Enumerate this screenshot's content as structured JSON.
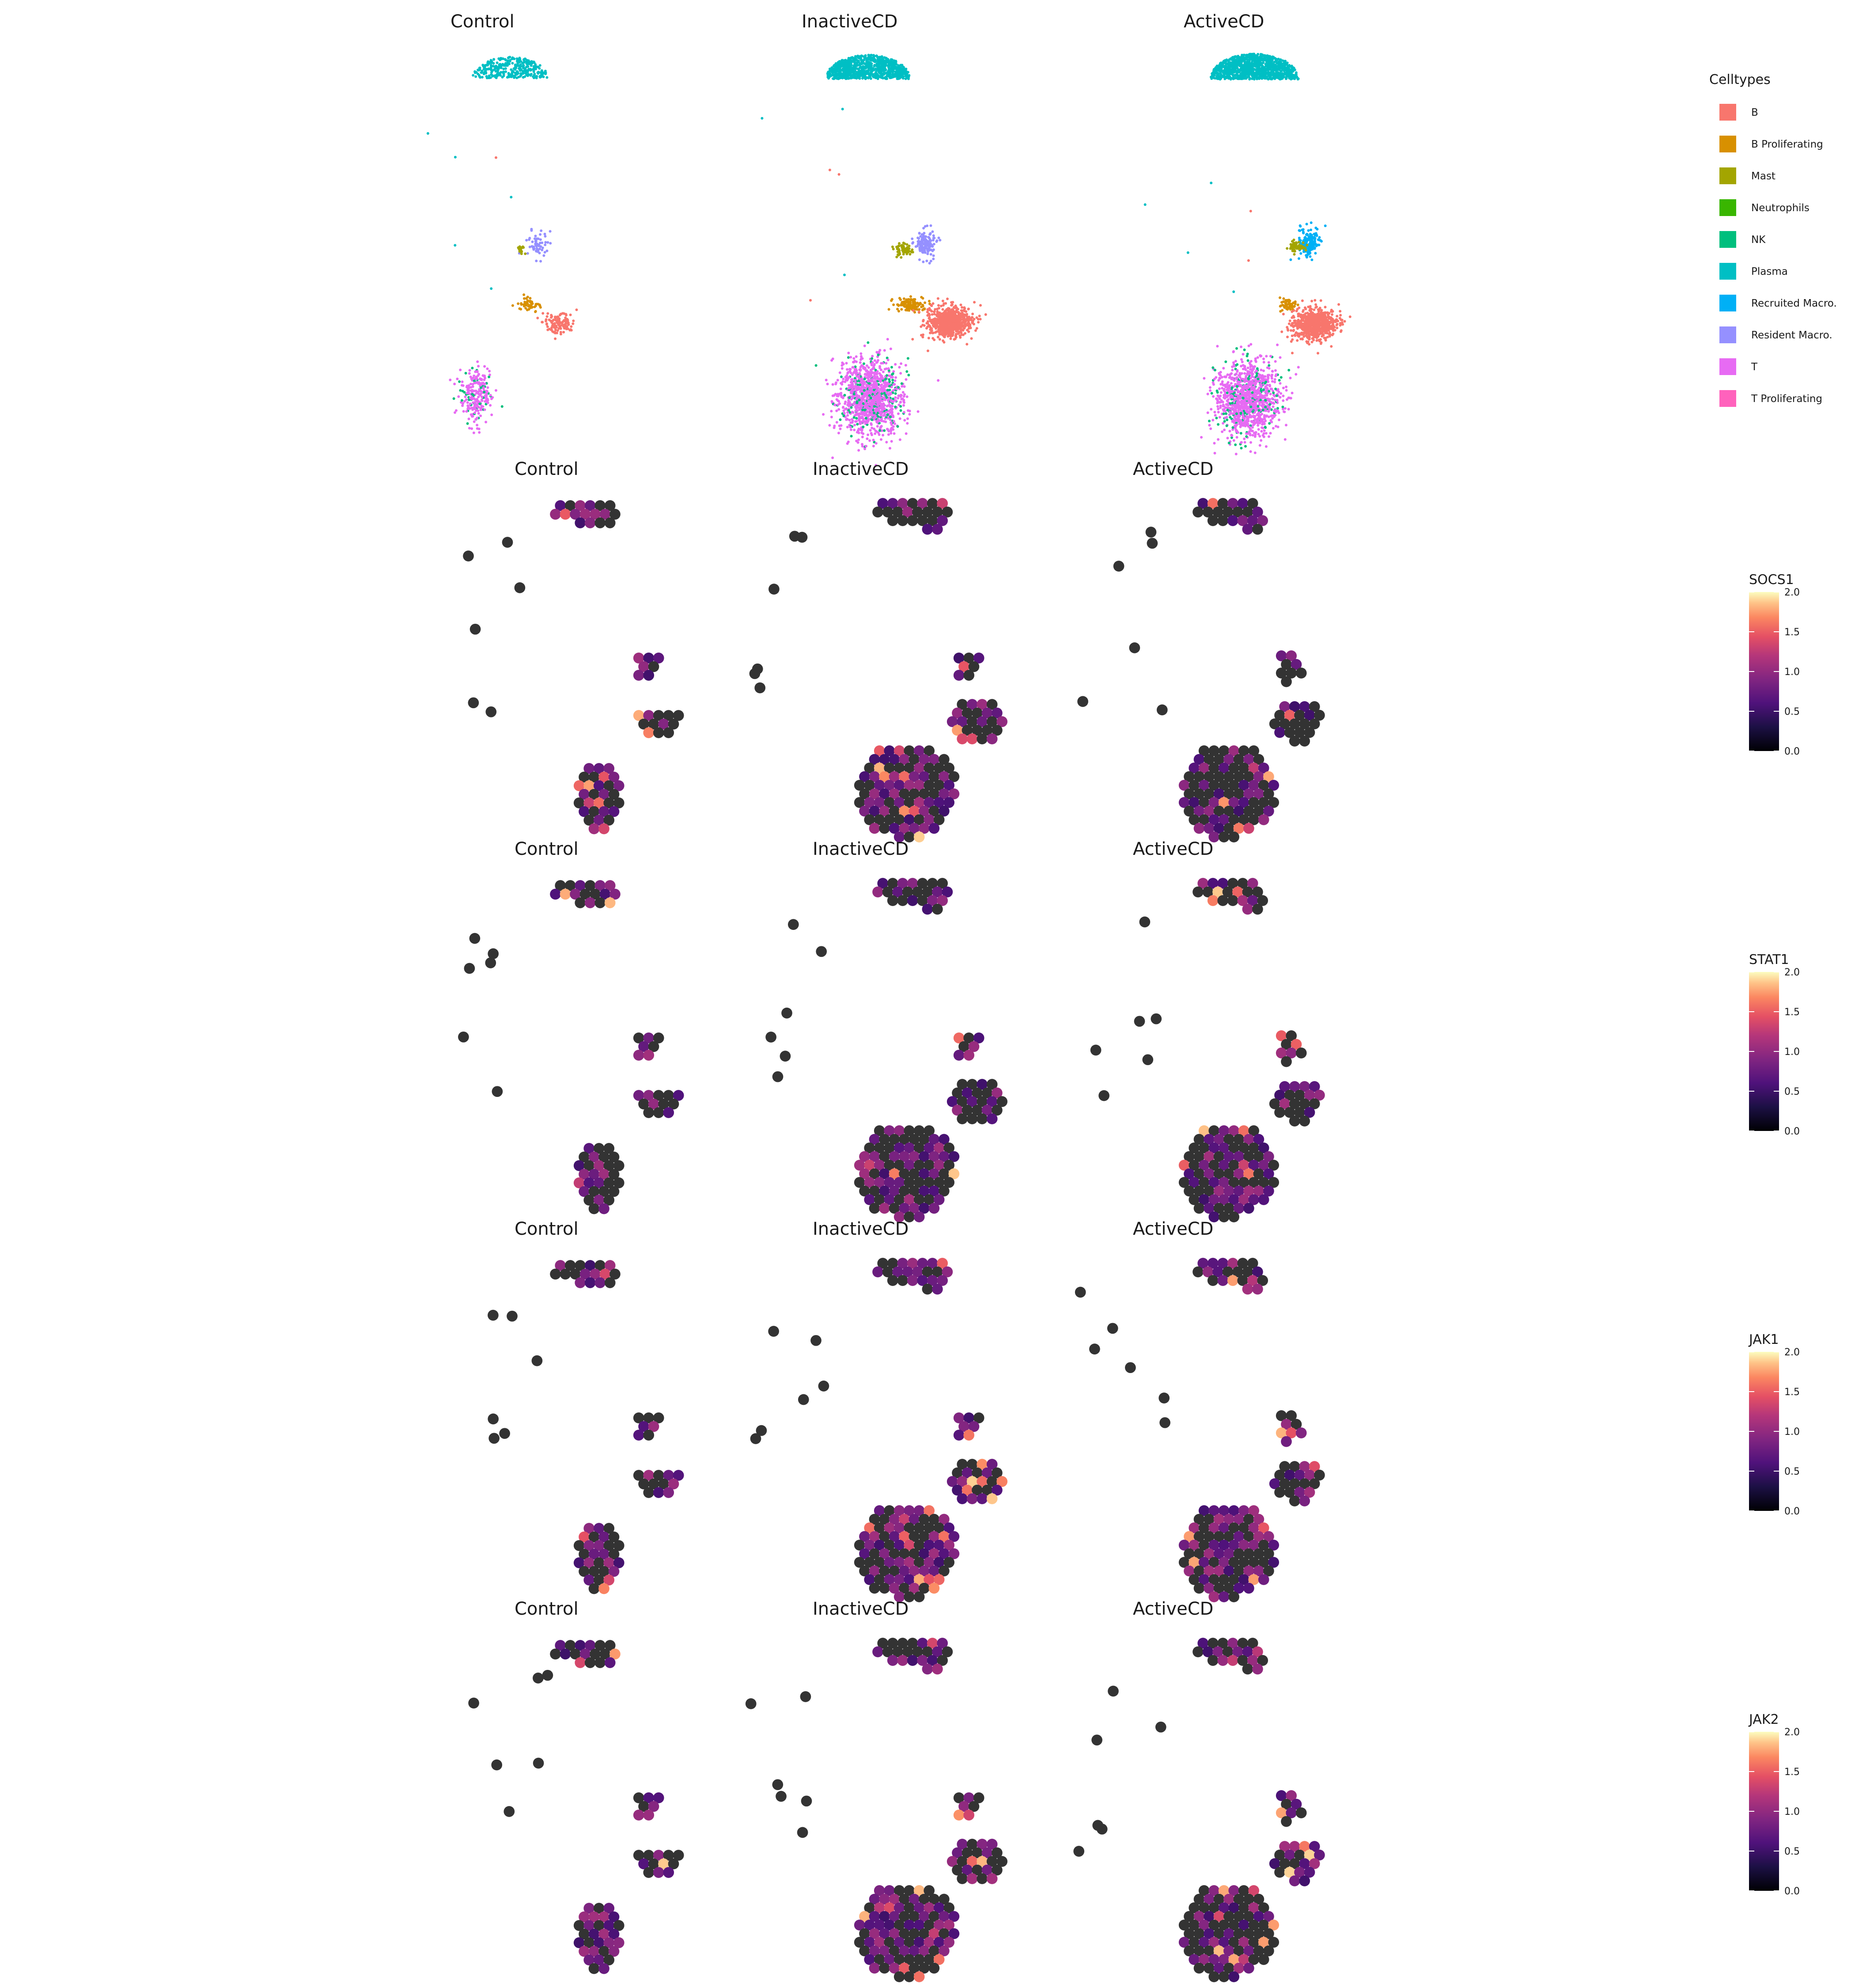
{
  "chart_data": [
    {
      "type": "scatter",
      "panels": [
        "Control",
        "InactiveCD",
        "ActiveCD"
      ],
      "legend": {
        "title": "Celltypes",
        "placement": "right",
        "items": [
          {
            "label": "B",
            "color": "#F8766D"
          },
          {
            "label": "B Proliferating",
            "color": "#D89000"
          },
          {
            "label": "Mast",
            "color": "#A3A500"
          },
          {
            "label": "Neutrophils",
            "color": "#39B600"
          },
          {
            "label": "NK",
            "color": "#00BF7D"
          },
          {
            "label": "Plasma",
            "color": "#00BFC4"
          },
          {
            "label": "Recruited Macro.",
            "color": "#00B0F6"
          },
          {
            "label": "Resident Macro.",
            "color": "#9590FF"
          },
          {
            "label": "T",
            "color": "#E76BF3"
          },
          {
            "label": "T Proliferating",
            "color": "#FF62BC"
          }
        ]
      },
      "grid": false
    },
    {
      "type": "heatmap",
      "gene": "SOCS1",
      "panels": [
        "Control",
        "InactiveCD",
        "ActiveCD"
      ],
      "colorbar": {
        "title": "SOCS1",
        "min": 0.0,
        "max": 2.0,
        "ticks": [
          "0.0",
          "0.5",
          "1.0",
          "1.5",
          "2.0"
        ]
      },
      "na_color": "#333333",
      "grid": false
    },
    {
      "type": "heatmap",
      "gene": "STAT1",
      "panels": [
        "Control",
        "InactiveCD",
        "ActiveCD"
      ],
      "colorbar": {
        "title": "STAT1",
        "min": 0.0,
        "max": 2.0,
        "ticks": [
          "0.0",
          "0.5",
          "1.0",
          "1.5",
          "2.0"
        ]
      },
      "na_color": "#333333",
      "grid": false
    },
    {
      "type": "heatmap",
      "gene": "JAK1",
      "panels": [
        "Control",
        "InactiveCD",
        "ActiveCD"
      ],
      "colorbar": {
        "title": "JAK1",
        "min": 0.0,
        "max": 2.0,
        "ticks": [
          "0.0",
          "0.5",
          "1.0",
          "1.5",
          "2.0"
        ]
      },
      "na_color": "#333333",
      "grid": false
    },
    {
      "type": "heatmap",
      "gene": "JAK2",
      "panels": [
        "Control",
        "InactiveCD",
        "ActiveCD"
      ],
      "colorbar": {
        "title": "JAK2",
        "min": 0.0,
        "max": 2.0,
        "ticks": [
          "0.0",
          "0.5",
          "1.0",
          "1.5",
          "2.0"
        ]
      },
      "na_color": "#333333",
      "grid": false
    }
  ]
}
